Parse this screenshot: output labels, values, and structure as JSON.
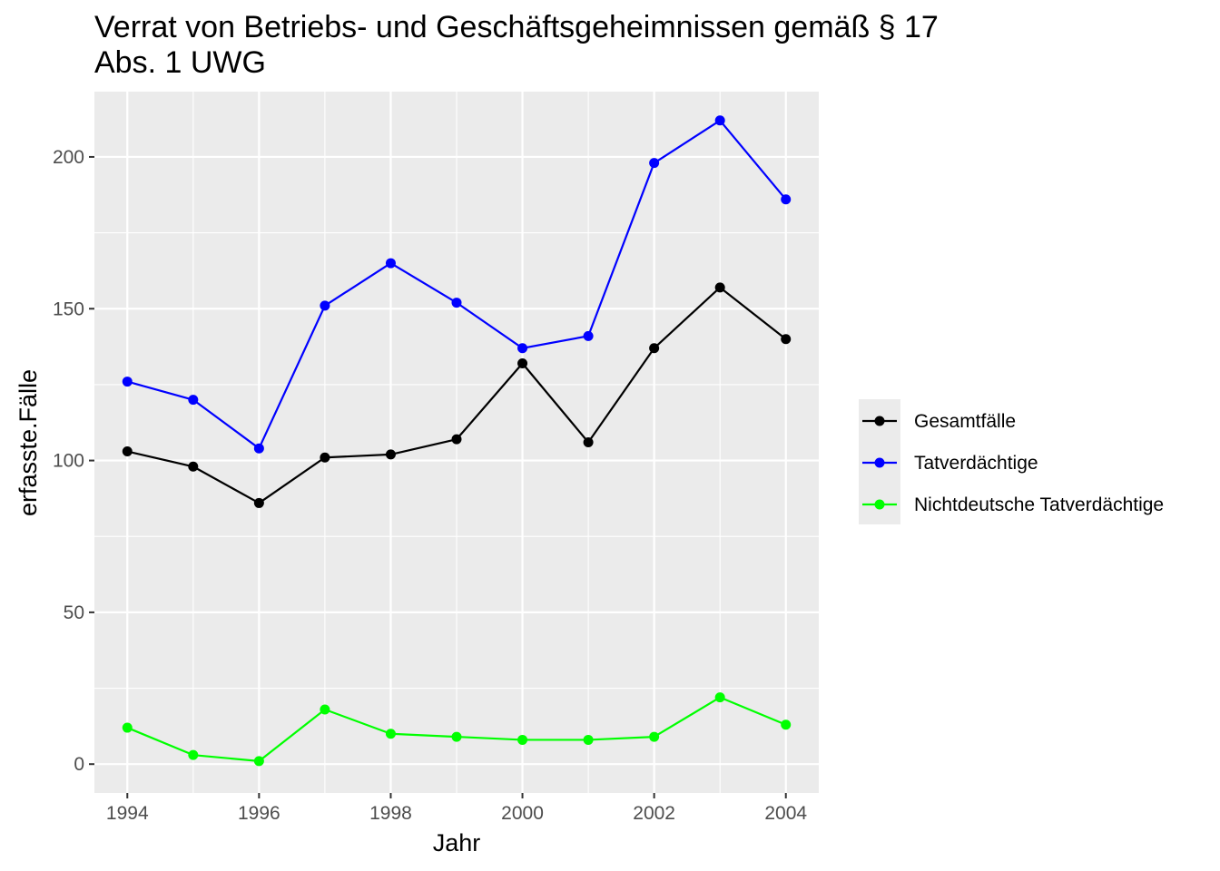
{
  "chart_data": {
    "type": "line",
    "title_lines": [
      "Verrat von Betriebs- und Geschäftsgeheimnissen gemäß § 17",
      "Abs. 1 UWG"
    ],
    "xlabel": "Jahr",
    "ylabel": "erfasste.Fälle",
    "x": [
      1994,
      1995,
      1996,
      1997,
      1998,
      1999,
      2000,
      2001,
      2002,
      2003,
      2004
    ],
    "xlim": [
      1993.5,
      2004.5
    ],
    "xticks": [
      1994,
      1996,
      1998,
      2000,
      2002,
      2004
    ],
    "xtick_labels": [
      "1994",
      "1996",
      "1998",
      "2000",
      "2002",
      "2004"
    ],
    "ylim": [
      -9.5,
      221.5
    ],
    "yticks": [
      0,
      50,
      100,
      150,
      200
    ],
    "ytick_labels": [
      "0",
      "50",
      "100",
      "150",
      "200"
    ],
    "grid": true,
    "background": "#ebebeb",
    "legend_position": "right",
    "series": [
      {
        "name": "Gesamtfälle",
        "color": "#000000",
        "values": [
          103,
          98,
          86,
          101,
          102,
          107,
          132,
          106,
          137,
          157,
          140
        ]
      },
      {
        "name": "Tatverdächtige",
        "color": "#0000ff",
        "values": [
          126,
          120,
          104,
          151,
          165,
          152,
          137,
          141,
          198,
          212,
          186
        ]
      },
      {
        "name": "Nichtdeutsche Tatverdächtige",
        "color": "#00ff00",
        "values": [
          12,
          3,
          1,
          18,
          10,
          9,
          8,
          8,
          9,
          22,
          13
        ]
      }
    ]
  }
}
